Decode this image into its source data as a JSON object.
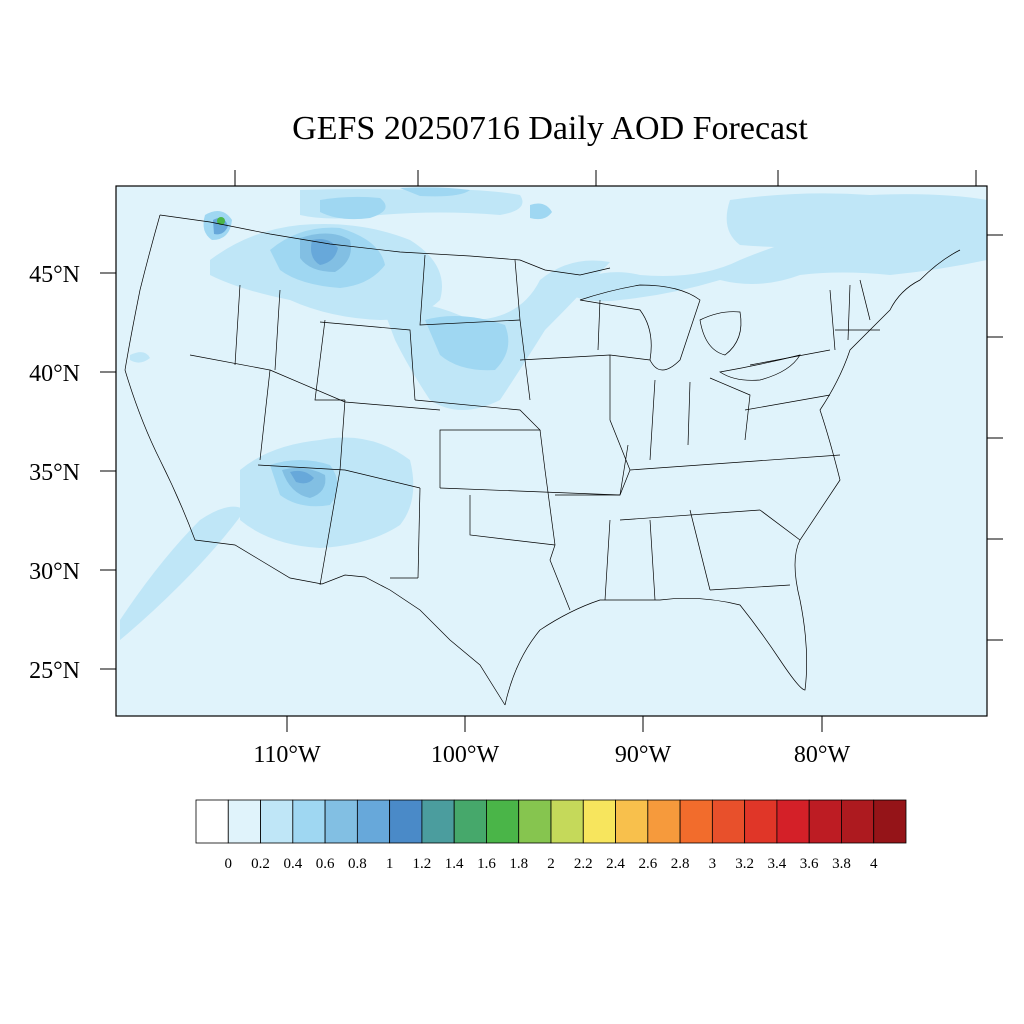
{
  "title": "GEFS 20250716 Daily AOD Forecast",
  "map": {
    "lat_labels": [
      "45°N",
      "40°N",
      "35°N",
      "30°N",
      "25°N"
    ],
    "lat_values": [
      45,
      40,
      35,
      30,
      25
    ],
    "lon_labels": [
      "110°W",
      "100°W",
      "90°W",
      "80°W"
    ],
    "lon_values": [
      -110,
      -100,
      -90,
      -80
    ],
    "background_color": "#e0f3fb",
    "plumes": [
      {
        "region": "Northern Rockies / Montana",
        "level": "0.6-1.0"
      },
      {
        "region": "Pacific Northwest (Washington)",
        "level": "1.6-1.8"
      },
      {
        "region": "Arizona / New Mexico",
        "level": "0.6-1.0"
      },
      {
        "region": "Northern Plains / Nebraska",
        "level": "0.4-0.6"
      },
      {
        "region": "Great Lakes / Northeast",
        "level": "0.4"
      }
    ]
  },
  "colorbar": {
    "labels": [
      "0",
      "0.2",
      "0.4",
      "0.6",
      "0.8",
      "1",
      "1.2",
      "1.4",
      "1.6",
      "1.8",
      "2",
      "2.2",
      "2.4",
      "2.6",
      "2.8",
      "3",
      "3.2",
      "3.4",
      "3.6",
      "3.8",
      "4"
    ],
    "colors": [
      "#ffffff",
      "#e0f3fb",
      "#bfe6f7",
      "#9fd7f2",
      "#82bfe3",
      "#67a8da",
      "#4a8ac8",
      "#4b9d9e",
      "#46a86b",
      "#4ab548",
      "#86c54f",
      "#c5d95a",
      "#f7e55d",
      "#f8c04c",
      "#f69a3c",
      "#f26c2c",
      "#e8502b",
      "#e03628",
      "#d42028",
      "#bd1c23",
      "#ad1a1f",
      "#951418"
    ]
  }
}
